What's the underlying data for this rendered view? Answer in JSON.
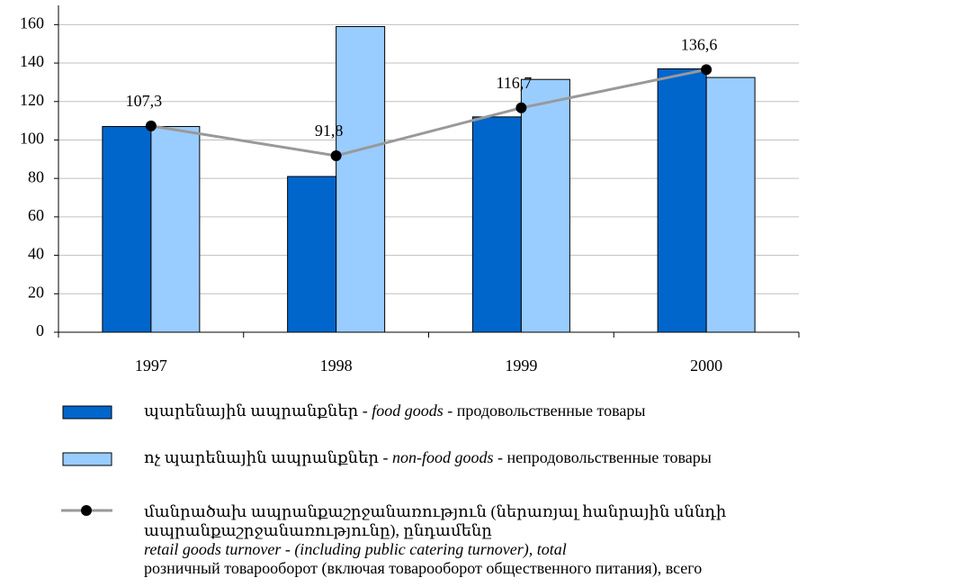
{
  "chart_data": {
    "type": "bar_line",
    "categories": [
      "1997",
      "1998",
      "1999",
      "2000"
    ],
    "series": [
      {
        "name": "պարենային ապրանքներ - food goods - продовольственные товары",
        "color": "#0066cc",
        "values": [
          107,
          81,
          112,
          137
        ]
      },
      {
        "name": "ոչ պարենային ապրանքներ - non-food goods - непродовольственные товары",
        "color": "#99ccff",
        "values": [
          107,
          159,
          131.5,
          132.5
        ]
      },
      {
        "name": "մանրածախ ապրանքաշրջանառություն (ներառյալ հանրային սննդի\nապրանքաշրջանառությունը), ընդամենը\nretail goods turnover - (including public catering turnover), total\nрозничный товарооборот (включая товарооборот общественного питания), всего",
        "color": "#999999",
        "type": "line",
        "values": [
          107.3,
          91.8,
          116.7,
          136.6
        ],
        "value_labels": [
          "107,3",
          "91,8",
          "116,7",
          "136,6"
        ]
      }
    ],
    "ylim": [
      0,
      170
    ],
    "yticks": [
      0,
      20,
      40,
      60,
      80,
      100,
      120,
      140,
      160
    ],
    "grid": true
  }
}
